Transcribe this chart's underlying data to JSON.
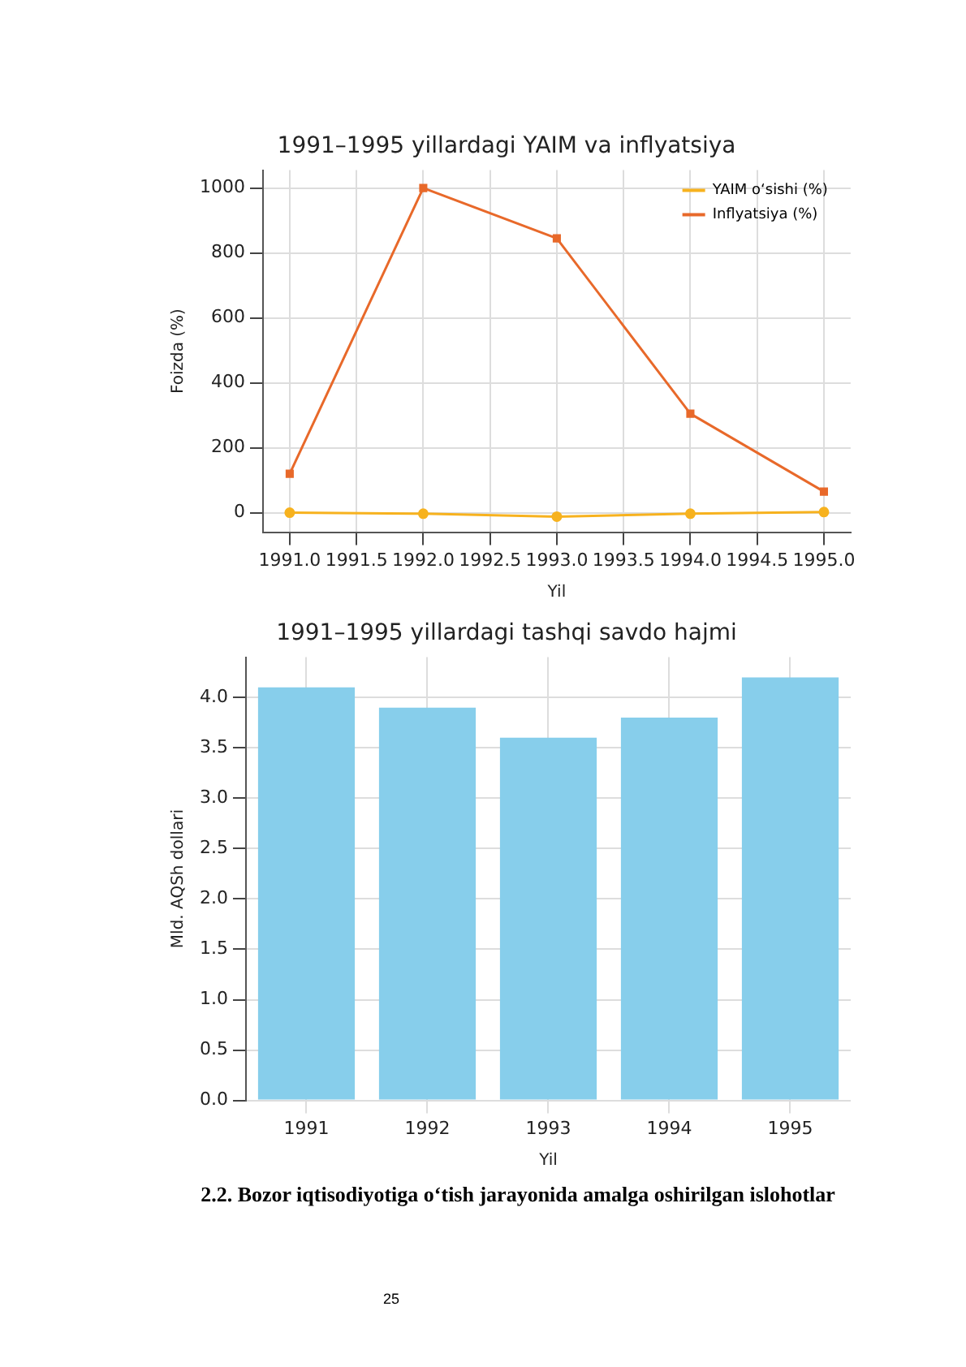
{
  "chart_data": [
    {
      "type": "line",
      "title": "1991–1995 yillardagi YAIM va inflyatsiya",
      "xlabel": "Yil",
      "ylabel": "Foizda (%)",
      "x": [
        1991,
        1992,
        1993,
        1994,
        1995
      ],
      "series": [
        {
          "name": "YAIM o‘sishi (%)",
          "color": "#f7b21e",
          "marker": "circle",
          "values": [
            0,
            -3,
            -12,
            -3,
            2
          ]
        },
        {
          "name": "Inflyatsiya (%)",
          "color": "#e8692a",
          "marker": "square",
          "values": [
            120,
            1000,
            845,
            305,
            65
          ]
        }
      ],
      "xlim": [
        1990.8,
        1995.2
      ],
      "xticks": [
        {
          "value": 1991,
          "label": "1991.0"
        },
        1991.5,
        {
          "value": 1992,
          "label": "1992.0"
        },
        1992.5,
        {
          "value": 1993,
          "label": "1993.0"
        },
        1993.5,
        {
          "value": 1994,
          "label": "1994.0"
        },
        1994.5,
        {
          "value": 1995,
          "label": "1995.0"
        }
      ],
      "ylim": [
        -60,
        1055
      ],
      "yticks": [
        0,
        200,
        400,
        600,
        800,
        1000
      ],
      "grid": true,
      "legend": "top right",
      "line_style": "solid"
    },
    {
      "type": "bar",
      "title": "1991–1995 yillardagi tashqi savdo hajmi",
      "xlabel": "Yil",
      "ylabel": "Mld. AQSh dollari",
      "categories": [
        "1991",
        "1992",
        "1993",
        "1994",
        "1995"
      ],
      "values": [
        4.1,
        3.9,
        3.6,
        3.8,
        4.2
      ],
      "color": "#87ceeb",
      "ylim": [
        0,
        4.4
      ],
      "yticks": [
        {
          "value": 0,
          "label": "0.0"
        },
        0.5,
        {
          "value": 1,
          "label": "1.0"
        },
        1.5,
        {
          "value": 2,
          "label": "2.0"
        },
        2.5,
        {
          "value": 3,
          "label": "3.0"
        },
        3.5,
        {
          "value": 4,
          "label": "4.0"
        }
      ],
      "grid": true,
      "annotations": [
        "2.2. Bozor iqtisodiyotiga o‘tish jarayonida amalga oshirilgan islohotlar",
        "25"
      ]
    }
  ]
}
